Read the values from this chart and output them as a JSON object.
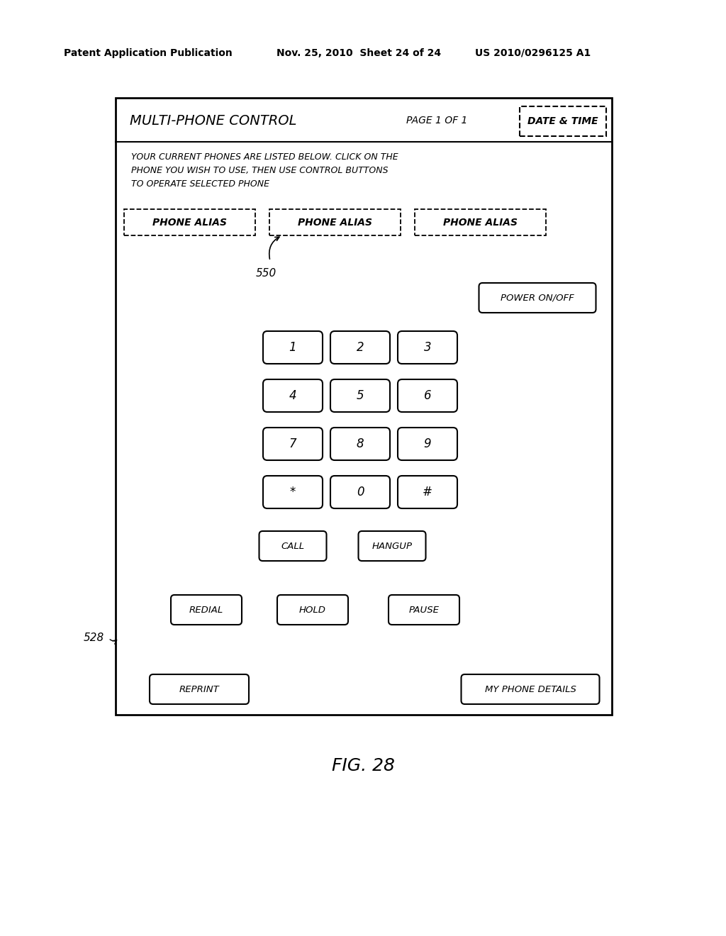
{
  "bg_color": "#ffffff",
  "header_text_left": "Patent Application Publication",
  "header_text_mid": "Nov. 25, 2010  Sheet 24 of 24",
  "header_text_right": "US 2010/0296125 A1",
  "fig_label": "FIG. 28",
  "panel_title": "MULTI-PHONE CONTROL",
  "page_label": "PAGE 1 OF 1",
  "date_time_label": "DATE & TIME",
  "instruction_text": "YOUR CURRENT PHONES ARE LISTED BELOW. CLICK ON THE\nPHONE YOU WISH TO USE, THEN USE CONTROL BUTTONS\nTO OPERATE SELECTED PHONE",
  "phone_aliases": [
    "PHONE ALIAS",
    "PHONE ALIAS",
    "PHONE ALIAS"
  ],
  "label_550": "550",
  "label_528": "528",
  "power_button": "POWER ON/OFF",
  "keypad": [
    [
      "1",
      "2",
      "3"
    ],
    [
      "4",
      "5",
      "6"
    ],
    [
      "7",
      "8",
      "9"
    ],
    [
      "*",
      "0",
      "#"
    ]
  ],
  "call_buttons": [
    "CALL",
    "HANGUP"
  ],
  "bottom_buttons": [
    "REDIAL",
    "HOLD",
    "PAUSE"
  ],
  "bottom_row_left": "REPRINT",
  "bottom_row_right": "MY PHONE DETAILS"
}
